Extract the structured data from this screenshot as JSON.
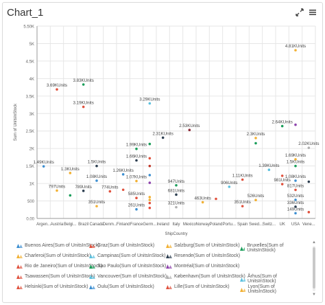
{
  "window": {
    "title": "Chart_1",
    "expand_icon": "expand-icon",
    "menu_icon": "hamburger-menu-icon"
  },
  "chart_data": {
    "type": "scatter",
    "xlabel": "ShipCountry",
    "ylabel": "Sum of UnitsInStock",
    "ylim": [
      0,
      5500
    ],
    "y_ticks": [
      "0.00",
      "500",
      "1K",
      "1.5K",
      "2K",
      "2.5K",
      "3K",
      "3.5K",
      "4K",
      "4.5K",
      "5K",
      "5.50K"
    ],
    "y_tick_values": [
      0,
      500,
      1000,
      1500,
      2000,
      2500,
      3000,
      3500,
      4000,
      4500,
      5000,
      5500
    ],
    "categories": [
      "Argen...",
      "Austria",
      "Belgi...",
      "Brazil",
      "Canada",
      "Denm...",
      "Finland",
      "France",
      "Germ...",
      "Ireland",
      "Italy",
      "Mexico",
      "Norway",
      "Poland",
      "Portu...",
      "Spain",
      "Swed...",
      "Switz...",
      "UK",
      "USA",
      "Vene..."
    ],
    "grid": true,
    "legend_position": "bottom",
    "points": [
      {
        "c": 0,
        "v": 1490,
        "label": "1.49KUnits",
        "color": "#3d8fd1"
      },
      {
        "c": 1,
        "v": 3690,
        "label": "3.69KUnits",
        "color": "#e0523e"
      },
      {
        "c": 1,
        "v": 797,
        "label": "797Units",
        "color": "#f2b134"
      },
      {
        "c": 2,
        "v": 1300,
        "label": "1.3KUnits",
        "color": "#f2b134"
      },
      {
        "c": 2,
        "v": 660,
        "label": "",
        "color": "#1a9e5a"
      },
      {
        "c": 3,
        "v": 3830,
        "label": "3.83KUnits",
        "color": "#1a9e5a"
      },
      {
        "c": 3,
        "v": 3190,
        "label": "3.19KUnits",
        "color": "#e0523e"
      },
      {
        "c": 3,
        "v": 789,
        "label": "789Units",
        "color": "#2c3e50"
      },
      {
        "c": 4,
        "v": 1500,
        "label": "1.5KUnits",
        "color": "#2c3e50"
      },
      {
        "c": 4,
        "v": 1080,
        "label": "1.08KUnits",
        "color": "#3d8fd1"
      },
      {
        "c": 4,
        "v": 351,
        "label": "351Units",
        "color": "#f2b134"
      },
      {
        "c": 5,
        "v": 774,
        "label": "774Units",
        "color": "#e0523e"
      },
      {
        "c": 6,
        "v": 1260,
        "label": "1.26KUnits",
        "color": "#3d8fd1"
      },
      {
        "c": 6,
        "v": 820,
        "label": "",
        "color": "#e0523e"
      },
      {
        "c": 7,
        "v": 1990,
        "label": "1.99KUnits",
        "color": "#1a9e5a"
      },
      {
        "c": 7,
        "v": 1660,
        "label": "1.66KUnits",
        "color": "#2c3e50"
      },
      {
        "c": 7,
        "v": 1070,
        "label": "1.07KUnits",
        "color": "#f2b134"
      },
      {
        "c": 7,
        "v": 585,
        "label": "585Units",
        "color": "#e0523e"
      },
      {
        "c": 7,
        "v": 261,
        "label": "261Units",
        "color": "#3d8fd1"
      },
      {
        "c": 8,
        "v": 3290,
        "label": "3.29KUnits",
        "color": "#5bc0de"
      },
      {
        "c": 8,
        "v": 2130,
        "label": "",
        "color": "#1a9e5a"
      },
      {
        "c": 8,
        "v": 1720,
        "label": "",
        "color": "#e0523e"
      },
      {
        "c": 8,
        "v": 1500,
        "label": "",
        "color": "#c0392b"
      },
      {
        "c": 8,
        "v": 1240,
        "label": "",
        "color": "#3d8fd1"
      },
      {
        "c": 8,
        "v": 1020,
        "label": "",
        "color": "#8e44ad"
      },
      {
        "c": 8,
        "v": 610,
        "label": "",
        "color": "#f2b134"
      },
      {
        "c": 8,
        "v": 530,
        "label": "",
        "color": "#f2b134"
      },
      {
        "c": 8,
        "v": 440,
        "label": "",
        "color": "#e0523e"
      },
      {
        "c": 8,
        "v": 300,
        "label": "",
        "color": "#e74c3c"
      },
      {
        "c": 9,
        "v": 2310,
        "label": "2.31KUnits",
        "color": "#2c3e50"
      },
      {
        "c": 10,
        "v": 947,
        "label": "947Units",
        "color": "#1a9e5a"
      },
      {
        "c": 10,
        "v": 681,
        "label": "681Units",
        "color": "#2c3e50"
      },
      {
        "c": 10,
        "v": 321,
        "label": "321Units",
        "color": "#b0b0b0"
      },
      {
        "c": 11,
        "v": 2530,
        "label": "2.53KUnits",
        "color": "#8e2d3a"
      },
      {
        "c": 12,
        "v": 463,
        "label": "463Units",
        "color": "#f2b134"
      },
      {
        "c": 13,
        "v": 560,
        "label": "",
        "color": "#e0523e"
      },
      {
        "c": 14,
        "v": 906,
        "label": "906Units",
        "color": "#5bc0de"
      },
      {
        "c": 15,
        "v": 1110,
        "label": "1.11KUnits",
        "color": "#e0523e"
      },
      {
        "c": 15,
        "v": 351,
        "label": "351Units",
        "color": "#e0523e"
      },
      {
        "c": 16,
        "v": 2300,
        "label": "2.3KUnits",
        "color": "#f2b134"
      },
      {
        "c": 16,
        "v": 2150,
        "label": "",
        "color": "#1a9e5a"
      },
      {
        "c": 16,
        "v": 526,
        "label": "526Units",
        "color": "#f2b134"
      },
      {
        "c": 17,
        "v": 1390,
        "label": "1.39KUnits",
        "color": "#5bc0de"
      },
      {
        "c": 18,
        "v": 2640,
        "label": "2.64KUnits",
        "color": "#1a9e5a"
      },
      {
        "c": 18,
        "v": 1220,
        "label": "",
        "color": "#e0523e"
      },
      {
        "c": 18,
        "v": 981,
        "label": "981Units",
        "color": "#e0523e"
      },
      {
        "c": 19,
        "v": 4810,
        "label": "4.81KUnits",
        "color": "#f2b134"
      },
      {
        "c": 19,
        "v": 2680,
        "label": "",
        "color": "#8e44ad"
      },
      {
        "c": 19,
        "v": 1690,
        "label": "1.69KUnits",
        "color": "#f2b134"
      },
      {
        "c": 19,
        "v": 1500,
        "label": "1.5KUnits",
        "color": "#1a9e5a"
      },
      {
        "c": 19,
        "v": 1080,
        "label": "1.08KUnits",
        "color": "#3d8fd1"
      },
      {
        "c": 19,
        "v": 817,
        "label": "817Units",
        "color": "#e0523e"
      },
      {
        "c": 19,
        "v": 532,
        "label": "532Units",
        "color": "#3d8fd1"
      },
      {
        "c": 19,
        "v": 336,
        "label": "336Units",
        "color": "#2c3e50"
      },
      {
        "c": 19,
        "v": 149,
        "label": "149Units",
        "color": "#3d8fd1"
      },
      {
        "c": 20,
        "v": 2020,
        "label": "2.02KUnits",
        "color": "#b0b0b0"
      },
      {
        "c": 20,
        "v": 1050,
        "label": "",
        "color": "#2c3e50"
      },
      {
        "c": 20,
        "v": 180,
        "label": "",
        "color": "#e0523e"
      }
    ]
  },
  "legend": {
    "rows": [
      [
        {
          "label": "Buenos Aires(Sum of UnitsInStock)",
          "color": "#3d8fd1"
        },
        {
          "label": "Graz(Sum of UnitsInStock)",
          "color": "#e0523e"
        },
        {
          "label": "Salzburg(Sum of UnitsInStock)",
          "color": "#f2b134"
        },
        {
          "label": "Bruxelles(Sum of UnitsInStock)",
          "color": "#1a9e5a"
        }
      ],
      [
        {
          "label": "Charleroi(Sum of UnitsInStock)",
          "color": "#f2b134"
        },
        {
          "label": "Campinas(Sum of UnitsInStock)",
          "color": "#5bc0de"
        },
        {
          "label": "Resende(Sum of UnitsInStock)",
          "color": "#2c3e50"
        }
      ],
      [
        {
          "label": "Rio de Janeiro(Sum of UnitsInStock)",
          "color": "#e0523e"
        },
        {
          "label": "Sao Paulo(Sum of UnitsInStock)",
          "color": "#1a9e5a"
        },
        {
          "label": "Montréal(Sum of UnitsInStock)",
          "color": "#8e44ad"
        }
      ],
      [
        {
          "label": "Tsawassen(Sum of UnitsInStock)",
          "color": "#e0523e"
        },
        {
          "label": "Vancouver(Sum of UnitsInStock)",
          "color": "#5bc0de"
        },
        {
          "label": "København(Sum of UnitsInStock)",
          "color": "#b0b0b0"
        },
        {
          "label": "Århus(Sum of UnitsInStock)",
          "color": "#5bc0de"
        }
      ],
      [
        {
          "label": "Helsinki(Sum of UnitsInStock)",
          "color": "#e0523e"
        },
        {
          "label": "Oulu(Sum of UnitsInStock)",
          "color": "#3d8fd1"
        },
        {
          "label": "Lille(Sum of UnitsInStock)",
          "color": "#e0523e"
        },
        {
          "label": "Lyon(Sum of UnitsInStock)",
          "color": "#f2b134"
        }
      ]
    ]
  }
}
